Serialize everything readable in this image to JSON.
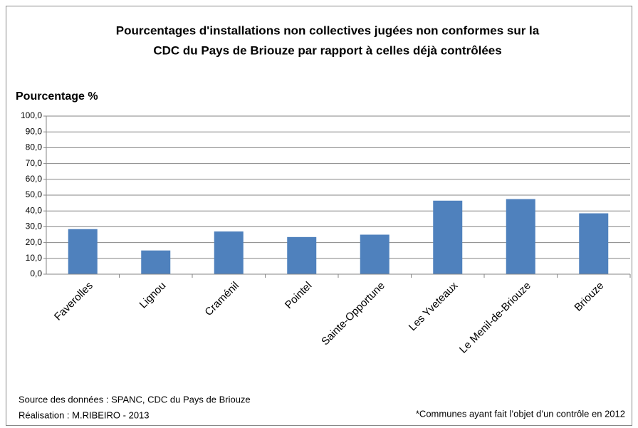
{
  "chart_data": {
    "type": "bar",
    "title": [
      "Pourcentages d'installations non collectives jugées non conformes sur la",
      "CDC du Pays de Briouze par rapport à celles déjà contrôlées"
    ],
    "y_label": "Pourcentage %",
    "categories": [
      "Faverolles",
      "Lignou",
      "Craménil",
      "Pointel",
      "Sainte-Opportune",
      "Les Yveteaux",
      "Le Menil-de-Briouze",
      "Briouze"
    ],
    "values": [
      28.5,
      15,
      27,
      23.5,
      25,
      46.5,
      47.5,
      38.5
    ],
    "color": "#4f81bd",
    "ylim": [
      0,
      100
    ],
    "yticks": [
      {
        "value": 0,
        "label": "0,0"
      },
      {
        "value": 10,
        "label": "10,0"
      },
      {
        "value": 20,
        "label": "20,0"
      },
      {
        "value": 30,
        "label": "30,0"
      },
      {
        "value": 40,
        "label": "40,0"
      },
      {
        "value": 50,
        "label": "50,0"
      },
      {
        "value": 60,
        "label": "60,0"
      },
      {
        "value": 70,
        "label": "70,0"
      },
      {
        "value": 80,
        "label": "80,0"
      },
      {
        "value": 90,
        "label": "90,0"
      },
      {
        "value": 100,
        "label": "100,0"
      }
    ],
    "grid": true,
    "source": [
      "Source des données : SPANC, CDC du Pays de Briouze",
      "Réalisation : M.RIBEIRO - 2013"
    ],
    "footnote": "*Communes ayant fait l’objet d’un contrôle en 2012"
  }
}
